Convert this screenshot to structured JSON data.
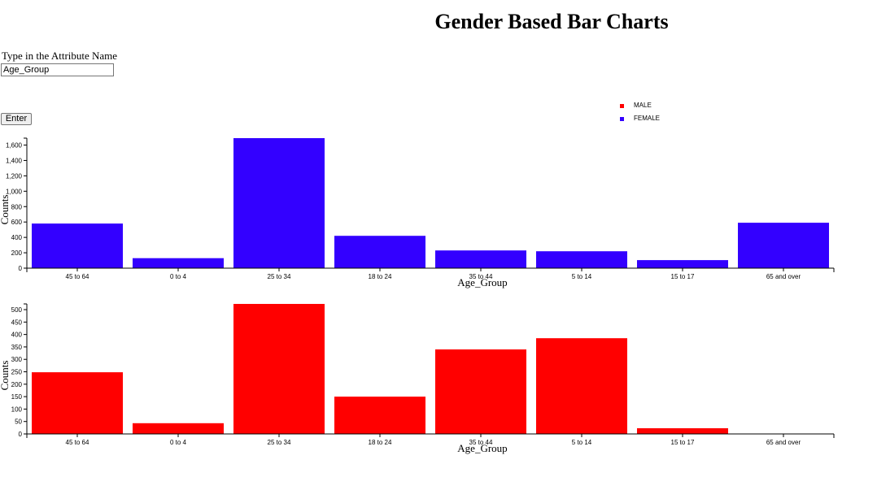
{
  "page": {
    "title": "Gender Based Bar Charts",
    "input_label": "Type in the Attribute Name",
    "input_value": "Age_Group",
    "enter_label": "Enter"
  },
  "legend": [
    {
      "label": "MALE",
      "color": "#ff0000"
    },
    {
      "label": "FEMALE",
      "color": "#3300ff"
    }
  ],
  "chart_data": [
    {
      "type": "bar",
      "categories": [
        "45 to 64",
        "0 to 4",
        "25 to 34",
        "18 to 24",
        "35 to 44",
        "5 to 14",
        "15 to 17",
        "65 and over"
      ],
      "values": [
        580,
        130,
        1690,
        420,
        230,
        220,
        105,
        590
      ],
      "series": [
        {
          "name": "FEMALE",
          "values": [
            580,
            130,
            1690,
            420,
            230,
            220,
            105,
            590
          ]
        }
      ],
      "color": "#3300ff",
      "xlabel": "Age_Group",
      "ylabel": "Counts",
      "ylim": [
        0,
        1690
      ],
      "yticks": [
        0,
        200,
        400,
        600,
        800,
        1000,
        1200,
        1400,
        1600
      ],
      "ytick_labels": [
        "0",
        "200",
        "400",
        "600",
        "800",
        "1,000",
        "1,200",
        "1,400",
        "1,600"
      ]
    },
    {
      "type": "bar",
      "categories": [
        "45 to 64",
        "0 to 4",
        "25 to 34",
        "18 to 24",
        "35 to 44",
        "5 to 14",
        "15 to 17",
        "65 and over"
      ],
      "values": [
        248,
        43,
        523,
        150,
        340,
        385,
        23,
        0
      ],
      "series": [
        {
          "name": "MALE",
          "values": [
            248,
            43,
            523,
            150,
            340,
            385,
            23,
            0
          ]
        }
      ],
      "color": "#ff0000",
      "xlabel": "Age_Group",
      "ylabel": "Counts",
      "ylim": [
        0,
        523
      ],
      "yticks": [
        0,
        50,
        100,
        150,
        200,
        250,
        300,
        350,
        400,
        450,
        500
      ],
      "ytick_labels": [
        "0",
        "50",
        "100",
        "150",
        "200",
        "250",
        "300",
        "350",
        "400",
        "450",
        "500"
      ]
    }
  ]
}
